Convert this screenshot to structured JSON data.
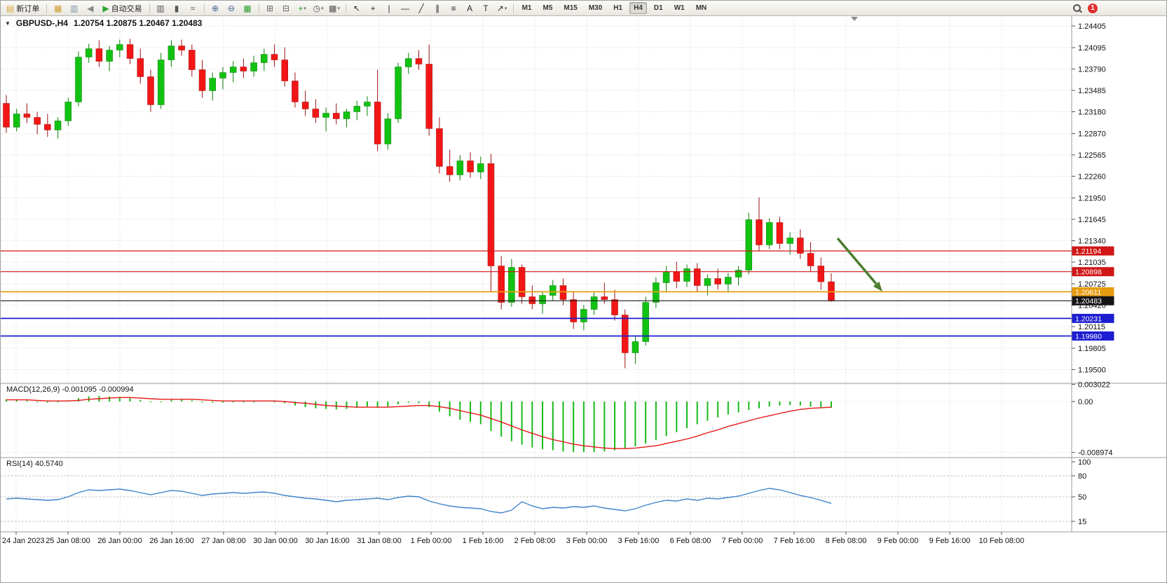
{
  "toolbar": {
    "badge_count": "1",
    "active_timeframe": "H4",
    "timeframes": [
      "M1",
      "M5",
      "M15",
      "M30",
      "H1",
      "H4",
      "D1",
      "W1",
      "MN"
    ],
    "items": [
      {
        "name": "new-order-button",
        "kind": "text",
        "icon_name": "new-order-icon",
        "glyph": "▤",
        "glyph_color": "#d9a93c",
        "label": "新订单"
      },
      {
        "kind": "sep"
      },
      {
        "name": "gold-chart-icon",
        "glyph": "▦",
        "color": "#cf9f2f"
      },
      {
        "name": "market-watch-icon",
        "glyph": "▥",
        "color": "#7f96ab"
      },
      {
        "name": "sound-icon",
        "glyph": "◀",
        "color": "#8a8a8a"
      },
      {
        "name": "autotrade-button",
        "kind": "text",
        "icon_name": "autotrade-play-icon",
        "glyph": "▶",
        "glyph_color": "#2fa32f",
        "label": "自动交易"
      },
      {
        "kind": "sep"
      },
      {
        "name": "bar-chart-icon",
        "glyph": "▥",
        "color": "#565656"
      },
      {
        "name": "candlestick-chart-icon",
        "glyph": "▮",
        "color": "#565656"
      },
      {
        "name": "line-chart-icon",
        "glyph": "≈",
        "color": "#565656"
      },
      {
        "kind": "sep"
      },
      {
        "name": "zoom-in-icon",
        "glyph": "⊕",
        "color": "#3f5f8d"
      },
      {
        "name": "zoom-out-icon",
        "glyph": "⊖",
        "color": "#3f5f8d"
      },
      {
        "name": "tile-windows-icon",
        "glyph": "▦",
        "color": "#2f9e2f"
      },
      {
        "kind": "sep"
      },
      {
        "name": "cascade-windows-icon",
        "glyph": "⊞",
        "color": "#6a6a6a"
      },
      {
        "name": "arrange-windows-icon",
        "glyph": "⊟",
        "color": "#6a6a6a"
      },
      {
        "name": "indicators-icon",
        "glyph": "+",
        "color": "#1f9e1f",
        "dropdown": true
      },
      {
        "name": "periods-icon",
        "glyph": "◷",
        "color": "#565656",
        "dropdown": true
      },
      {
        "name": "templates-icon",
        "glyph": "▩",
        "color": "#565656",
        "dropdown": true
      },
      {
        "kind": "sep"
      },
      {
        "name": "cursor-icon",
        "glyph": "↖",
        "color": "#2c2c2c"
      },
      {
        "name": "crosshair-icon",
        "glyph": "+",
        "color": "#2c2c2c"
      },
      {
        "name": "vertical-line-icon",
        "glyph": "|",
        "color": "#2c2c2c"
      },
      {
        "name": "horizontal-line-icon",
        "glyph": "—",
        "color": "#2c2c2c"
      },
      {
        "name": "trendline-icon",
        "glyph": "╱",
        "color": "#2c2c2c"
      },
      {
        "name": "channel-icon",
        "glyph": "∥",
        "color": "#2c2c2c"
      },
      {
        "name": "fibonacci-icon",
        "glyph": "≡",
        "color": "#2c2c2c"
      },
      {
        "name": "text-icon",
        "glyph": "A",
        "color": "#2c2c2c"
      },
      {
        "name": "label-icon",
        "glyph": "T",
        "color": "#2c2c2c"
      },
      {
        "name": "arrows-icon",
        "glyph": "↗",
        "color": "#2c2c2c",
        "dropdown": true
      },
      {
        "kind": "sep"
      }
    ]
  },
  "header": {
    "collapse_icon": "▼",
    "symbol": "GBPUSD-,H4",
    "ohlc": "1.20754 1.20875 1.20467 1.20483"
  },
  "chart_data": {
    "type": "candlestick",
    "symbol": "GBPUSD-",
    "timeframe": "H4",
    "up_color": "#12c212",
    "down_color": "#f21616",
    "price_scale": [
      "1.24405",
      "1.24095",
      "1.23790",
      "1.23485",
      "1.23180",
      "1.22870",
      "1.22565",
      "1.22260",
      "1.21950",
      "1.21645",
      "1.21340",
      "1.21035",
      "1.20725",
      "1.20420",
      "1.20115",
      "1.19805",
      "1.19500"
    ],
    "time_labels": [
      "24 Jan 2023",
      "25 Jan 08:00",
      "26 Jan 00:00",
      "26 Jan 16:00",
      "27 Jan 08:00",
      "30 Jan 00:00",
      "30 Jan 16:00",
      "31 Jan 08:00",
      "1 Feb 00:00",
      "1 Feb 16:00",
      "2 Feb 08:00",
      "3 Feb 00:00",
      "3 Feb 16:00",
      "6 Feb 08:00",
      "7 Feb 00:00",
      "7 Feb 16:00",
      "8 Feb 08:00",
      "9 Feb 00:00",
      "9 Feb 16:00",
      "10 Feb 08:00"
    ],
    "hlines": [
      {
        "price": 1.21194,
        "label": "1.21194",
        "color": "#d01616",
        "width": 1.2
      },
      {
        "price": 1.20898,
        "label": "1.20898",
        "color": "#d01616",
        "width": 1.2
      },
      {
        "price": 1.20611,
        "label": "1.20611",
        "color": "#e79c10",
        "width": 1.8
      },
      {
        "price": 1.20483,
        "label": "1.20483",
        "color": "#151515",
        "width": 1.1,
        "kind": "bid"
      },
      {
        "price": 1.20231,
        "label": "1.20231",
        "color": "#1c1cd0",
        "width": 1.8
      },
      {
        "price": 1.1998,
        "label": "1.19980",
        "color": "#1c1cd0",
        "width": 1.8
      }
    ],
    "arrow_annotation": {
      "color": "#4c7d2f",
      "direction": "down-right"
    },
    "candles": [
      [
        1.233,
        1.2342,
        1.2288,
        1.2296
      ],
      [
        1.2296,
        1.2322,
        1.229,
        1.2315
      ],
      [
        1.2315,
        1.233,
        1.2302,
        1.231
      ],
      [
        1.231,
        1.2318,
        1.2286,
        1.23
      ],
      [
        1.23,
        1.2315,
        1.2282,
        1.2292
      ],
      [
        1.2292,
        1.231,
        1.228,
        1.2305
      ],
      [
        1.2305,
        1.2338,
        1.2298,
        1.2332
      ],
      [
        1.2332,
        1.2404,
        1.2326,
        1.2396
      ],
      [
        1.2396,
        1.2415,
        1.2388,
        1.2408
      ],
      [
        1.2408,
        1.242,
        1.2382,
        1.239
      ],
      [
        1.239,
        1.2412,
        1.2376,
        1.2406
      ],
      [
        1.2406,
        1.2421,
        1.2396,
        1.2414
      ],
      [
        1.2414,
        1.2422,
        1.2386,
        1.2394
      ],
      [
        1.2394,
        1.2408,
        1.2358,
        1.2368
      ],
      [
        1.2368,
        1.2378,
        1.2318,
        1.2328
      ],
      [
        1.2328,
        1.2402,
        1.2322,
        1.2392
      ],
      [
        1.2392,
        1.242,
        1.2382,
        1.2412
      ],
      [
        1.2412,
        1.2421,
        1.2398,
        1.2406
      ],
      [
        1.2406,
        1.2414,
        1.2368,
        1.2378
      ],
      [
        1.2378,
        1.2392,
        1.2338,
        1.2348
      ],
      [
        1.2348,
        1.2374,
        1.2334,
        1.2366
      ],
      [
        1.2366,
        1.2382,
        1.235,
        1.2374
      ],
      [
        1.2374,
        1.239,
        1.236,
        1.2382
      ],
      [
        1.2382,
        1.2394,
        1.2366,
        1.2376
      ],
      [
        1.2376,
        1.2398,
        1.2368,
        1.2388
      ],
      [
        1.2388,
        1.2408,
        1.2376,
        1.24
      ],
      [
        1.24,
        1.2414,
        1.2382,
        1.2392
      ],
      [
        1.2392,
        1.241,
        1.2354,
        1.2362
      ],
      [
        1.2362,
        1.2374,
        1.2324,
        1.2332
      ],
      [
        1.2332,
        1.2348,
        1.2312,
        1.2322
      ],
      [
        1.2322,
        1.2336,
        1.2302,
        1.231
      ],
      [
        1.231,
        1.2324,
        1.229,
        1.2316
      ],
      [
        1.2316,
        1.233,
        1.23,
        1.2308
      ],
      [
        1.2308,
        1.2322,
        1.2296,
        1.2318
      ],
      [
        1.2318,
        1.2334,
        1.2306,
        1.2326
      ],
      [
        1.2326,
        1.234,
        1.2312,
        1.2332
      ],
      [
        1.2332,
        1.2378,
        1.2262,
        1.2272
      ],
      [
        1.2272,
        1.2316,
        1.2264,
        1.2308
      ],
      [
        1.2308,
        1.2388,
        1.2302,
        1.2382
      ],
      [
        1.2382,
        1.2402,
        1.2372,
        1.2394
      ],
      [
        1.2394,
        1.2406,
        1.2378,
        1.2386
      ],
      [
        1.2386,
        1.2414,
        1.2284,
        1.2294
      ],
      [
        1.2294,
        1.231,
        1.223,
        1.224
      ],
      [
        1.224,
        1.2264,
        1.2218,
        1.2228
      ],
      [
        1.2228,
        1.2256,
        1.222,
        1.2248
      ],
      [
        1.2248,
        1.226,
        1.2224,
        1.2232
      ],
      [
        1.2232,
        1.2254,
        1.2222,
        1.2244
      ],
      [
        1.2244,
        1.2258,
        1.2062,
        1.2098
      ],
      [
        1.2098,
        1.2112,
        1.2036,
        1.2046
      ],
      [
        1.2046,
        1.2108,
        1.204,
        1.2096
      ],
      [
        1.2096,
        1.21,
        1.2044,
        1.2054
      ],
      [
        1.2054,
        1.207,
        1.2036,
        1.2044
      ],
      [
        1.2044,
        1.2062,
        1.203,
        1.2056
      ],
      [
        1.2056,
        1.2078,
        1.2048,
        1.207
      ],
      [
        1.207,
        1.208,
        1.2042,
        1.205
      ],
      [
        1.205,
        1.2062,
        1.2008,
        1.2018
      ],
      [
        1.2018,
        1.2042,
        1.2006,
        1.2036
      ],
      [
        1.2036,
        1.206,
        1.2028,
        1.2054
      ],
      [
        1.2054,
        1.2074,
        1.2044,
        1.205
      ],
      [
        1.205,
        1.2064,
        1.202,
        1.2028
      ],
      [
        1.2028,
        1.2036,
        1.1952,
        1.1974
      ],
      [
        1.1974,
        1.1998,
        1.1958,
        1.199
      ],
      [
        1.199,
        1.2054,
        1.1984,
        1.2046
      ],
      [
        1.2046,
        1.2082,
        1.2038,
        1.2074
      ],
      [
        1.2074,
        1.2098,
        1.206,
        1.209
      ],
      [
        1.209,
        1.2104,
        1.2066,
        1.2076
      ],
      [
        1.2076,
        1.21,
        1.2068,
        1.2094
      ],
      [
        1.2094,
        1.2102,
        1.2062,
        1.207
      ],
      [
        1.207,
        1.2086,
        1.2056,
        1.208
      ],
      [
        1.208,
        1.2094,
        1.2064,
        1.2072
      ],
      [
        1.2072,
        1.2088,
        1.206,
        1.2082
      ],
      [
        1.2082,
        1.2098,
        1.207,
        1.2092
      ],
      [
        1.2092,
        1.2174,
        1.2086,
        1.2164
      ],
      [
        1.2164,
        1.2196,
        1.212,
        1.2128
      ],
      [
        1.2128,
        1.2166,
        1.2122,
        1.216
      ],
      [
        1.216,
        1.2168,
        1.2122,
        1.213
      ],
      [
        1.213,
        1.2146,
        1.2114,
        1.2138
      ],
      [
        1.2138,
        1.215,
        1.2108,
        1.2116
      ],
      [
        1.2116,
        1.2132,
        1.209,
        1.2098
      ],
      [
        1.2098,
        1.211,
        1.2064,
        1.20754
      ],
      [
        1.20754,
        1.20875,
        1.20467,
        1.20483
      ]
    ],
    "macd": {
      "label": "MACD(12,26,9) -0.001095 -0.000994",
      "scale": [
        "0.003022",
        "0.00",
        "-0.008974"
      ],
      "histogram_color": "#17b917",
      "signal_color": "#e81717",
      "histogram": [
        0.0004,
        0.0003,
        0.0002,
        0.0,
        -0.0002,
        -0.0001,
        0.0002,
        0.0006,
        0.0009,
        0.001,
        0.0009,
        0.0008,
        0.0006,
        0.0003,
        0.0,
        0.0001,
        0.0003,
        0.0004,
        0.0002,
        0.0,
        -0.0002,
        -0.0002,
        -0.0001,
        0.0,
        0.0001,
        0.0002,
        0.0,
        -0.0003,
        -0.0007,
        -0.001,
        -0.0012,
        -0.0013,
        -0.0014,
        -0.0013,
        -0.0011,
        -0.0009,
        -0.0011,
        -0.0009,
        -0.0005,
        -0.0002,
        -0.0003,
        -0.001,
        -0.0018,
        -0.0026,
        -0.0032,
        -0.0036,
        -0.004,
        -0.0052,
        -0.0062,
        -0.007,
        -0.0076,
        -0.0081,
        -0.0084,
        -0.0086,
        -0.0088,
        -0.0089,
        -0.0089,
        -0.0089,
        -0.0088,
        -0.0086,
        -0.0083,
        -0.0079,
        -0.0074,
        -0.0068,
        -0.0061,
        -0.0054,
        -0.0047,
        -0.004,
        -0.0034,
        -0.0028,
        -0.0023,
        -0.0019,
        -0.0015,
        -0.0012,
        -0.0009,
        -0.0007,
        -0.0006,
        -0.0007,
        -0.0009,
        -0.001,
        -0.001095
      ],
      "signal": [
        0.0003,
        0.0003,
        0.0003,
        0.0002,
        0.0001,
        0.0001,
        0.0001,
        0.0002,
        0.0004,
        0.0005,
        0.0006,
        0.0007,
        0.0007,
        0.0006,
        0.0005,
        0.0004,
        0.0004,
        0.0004,
        0.0004,
        0.0003,
        0.0002,
        0.0001,
        0.0001,
        0.0001,
        0.0001,
        0.0001,
        0.0001,
        0.0,
        -0.0002,
        -0.0003,
        -0.0005,
        -0.0007,
        -0.0008,
        -0.0009,
        -0.001,
        -0.001,
        -0.001,
        -0.001,
        -0.0009,
        -0.0008,
        -0.0007,
        -0.0007,
        -0.0009,
        -0.0012,
        -0.0016,
        -0.002,
        -0.0024,
        -0.003,
        -0.0036,
        -0.0043,
        -0.005,
        -0.0056,
        -0.0062,
        -0.0067,
        -0.0071,
        -0.0075,
        -0.0078,
        -0.008,
        -0.0082,
        -0.0083,
        -0.0083,
        -0.0082,
        -0.008,
        -0.0078,
        -0.0074,
        -0.007,
        -0.0066,
        -0.0061,
        -0.0055,
        -0.005,
        -0.0044,
        -0.0039,
        -0.0034,
        -0.0029,
        -0.0025,
        -0.0021,
        -0.0017,
        -0.0014,
        -0.0012,
        -0.0011,
        -0.000994
      ]
    },
    "rsi": {
      "label": "RSI(14) 40.5740",
      "scale": [
        "100",
        "80",
        "50",
        "15"
      ],
      "levels": [
        80,
        50,
        15
      ],
      "line_color": "#3f83cc",
      "values": [
        47,
        48,
        47,
        46,
        45,
        46,
        50,
        56,
        60,
        59,
        60,
        61,
        59,
        56,
        53,
        56,
        59,
        58,
        55,
        52,
        54,
        55,
        56,
        55,
        56,
        57,
        55,
        52,
        50,
        48,
        47,
        45,
        43,
        45,
        46,
        47,
        48,
        46,
        49,
        51,
        50,
        44,
        40,
        37,
        35,
        34,
        33,
        29,
        27,
        31,
        43,
        37,
        33,
        35,
        34,
        36,
        35,
        37,
        34,
        32,
        30,
        33,
        38,
        42,
        45,
        44,
        47,
        45,
        48,
        47,
        49,
        51,
        55,
        59,
        62,
        60,
        56,
        52,
        49,
        45,
        40.574
      ]
    }
  }
}
